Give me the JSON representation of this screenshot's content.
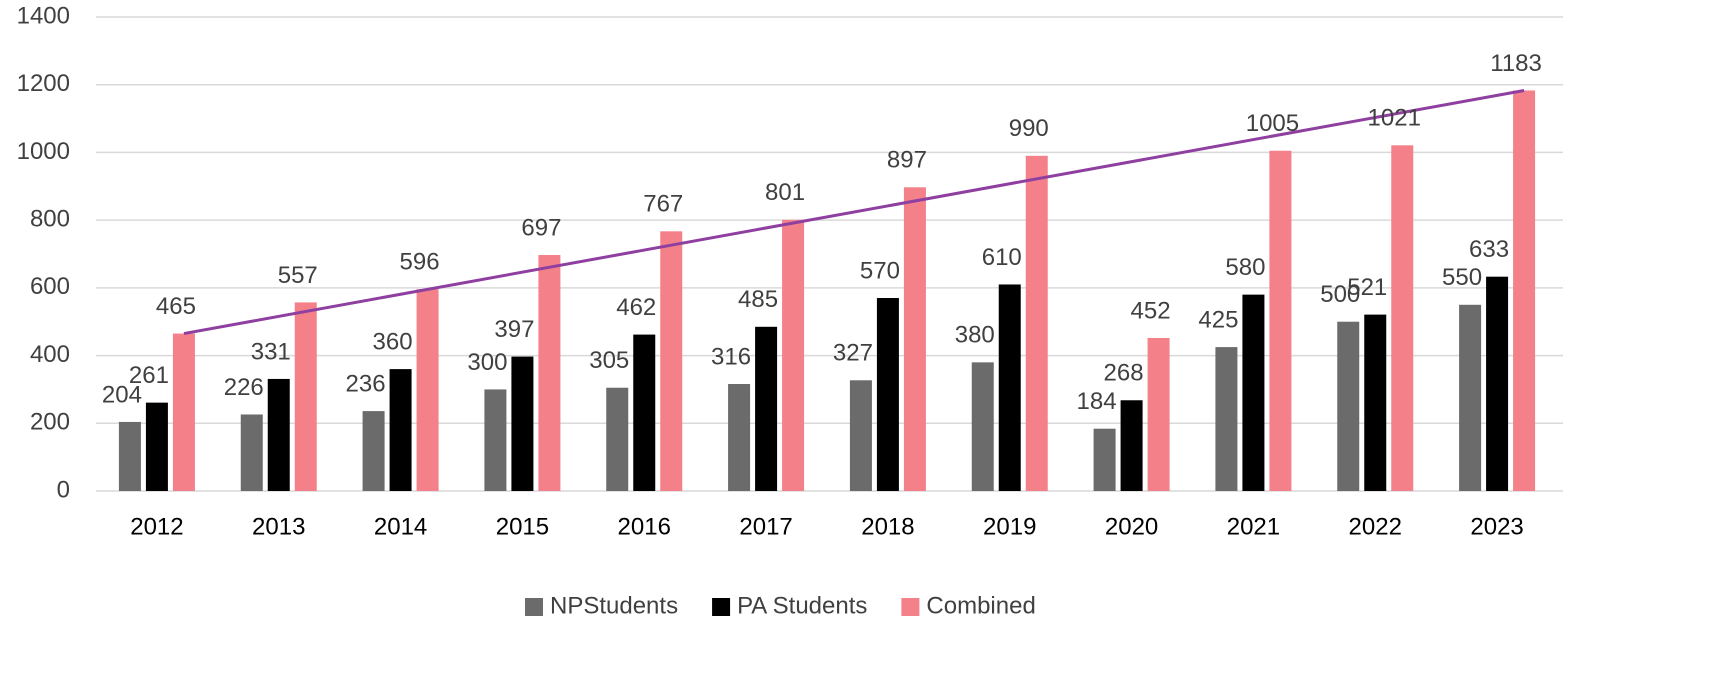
{
  "chart_data": {
    "type": "bar",
    "categories": [
      "2012",
      "2013",
      "2014",
      "2015",
      "2016",
      "2017",
      "2018",
      "2019",
      "2020",
      "2021",
      "2022",
      "2023"
    ],
    "series": [
      {
        "name": "NPStudents",
        "color": "#6b6b6b",
        "values": [
          204,
          226,
          236,
          300,
          305,
          316,
          327,
          380,
          184,
          425,
          500,
          550
        ]
      },
      {
        "name": "PA Students",
        "color": "#000000",
        "values": [
          261,
          331,
          360,
          397,
          462,
          485,
          570,
          610,
          268,
          580,
          521,
          633
        ]
      },
      {
        "name": "Combined",
        "color": "#f4808a",
        "values": [
          465,
          557,
          596,
          697,
          767,
          801,
          897,
          990,
          452,
          1005,
          1021,
          1183
        ]
      }
    ],
    "ylim": [
      0,
      1400
    ],
    "yticks": [
      0,
      200,
      400,
      600,
      800,
      1000,
      1200,
      1400
    ],
    "grid": true,
    "legend": "bottom",
    "trend_line": {
      "series": "Combined",
      "color": "#8e3fa0"
    }
  }
}
